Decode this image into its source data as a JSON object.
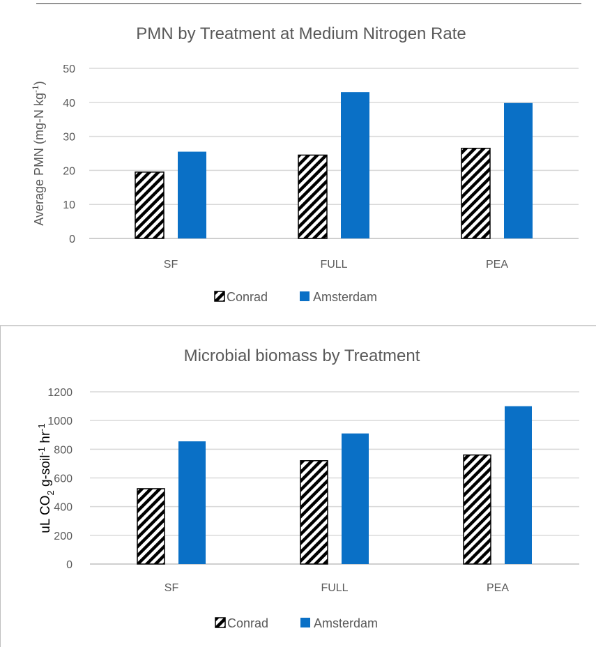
{
  "chart_data": [
    {
      "type": "bar",
      "title": "PMN by Treatment at Medium Nitrogen Rate",
      "ylabel": "Average PMN (mg-N kg-1)",
      "ylabel_parts": {
        "main": "Average PMN (mg-N kg",
        "sup": "-1",
        "end": ")"
      },
      "xlabel": "",
      "categories": [
        "SF",
        "FULL",
        "PEA"
      ],
      "ylim": [
        0,
        50
      ],
      "yticks": [
        0,
        10,
        20,
        30,
        40,
        50
      ],
      "grid": true,
      "legend_position": "bottom",
      "series": [
        {
          "name": "Conrad",
          "values": [
            19.5,
            24.5,
            26.5
          ],
          "style": "hatched",
          "color": "#000000"
        },
        {
          "name": "Amsterdam",
          "values": [
            25.5,
            43.0,
            39.8
          ],
          "style": "solid",
          "color": "#0a70c6"
        }
      ]
    },
    {
      "type": "bar",
      "title": "Microbial biomass by Treatment",
      "ylabel": "uL CO2 g-soil-1 hr-1",
      "ylabel_parts": {
        "a": "uL CO",
        "sub": "2",
        "b": " g-soil",
        "sup1": "-1",
        "c": " hr",
        "sup2": "-1"
      },
      "xlabel": "",
      "categories": [
        "SF",
        "FULL",
        "PEA"
      ],
      "ylim": [
        0,
        1200
      ],
      "yticks": [
        0,
        200,
        400,
        600,
        800,
        1000,
        1200
      ],
      "grid": true,
      "legend_position": "bottom",
      "series": [
        {
          "name": "Conrad",
          "values": [
            525,
            720,
            760
          ],
          "style": "hatched",
          "color": "#000000"
        },
        {
          "name": "Amsterdam",
          "values": [
            855,
            910,
            1100
          ],
          "style": "solid",
          "color": "#0a70c6"
        }
      ]
    }
  ],
  "colors": {
    "grid": "#d9d9d9",
    "axis": "#bfbfbf",
    "text": "#595959",
    "amsterdam": "#0a70c6"
  }
}
